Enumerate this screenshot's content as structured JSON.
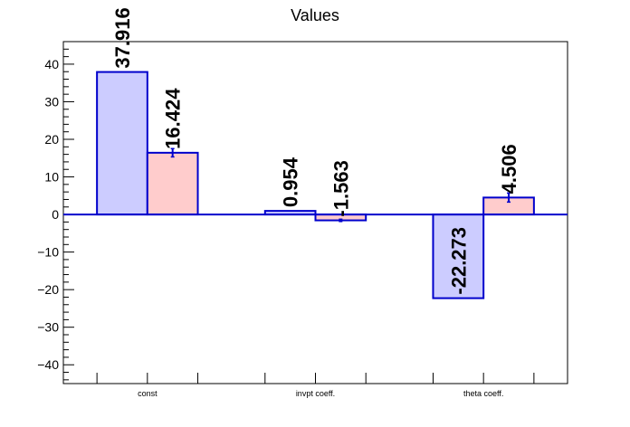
{
  "chart_data": {
    "type": "bar",
    "title": "Values",
    "xlabel": "",
    "ylabel": "",
    "ylim": [
      -45,
      46
    ],
    "yticks": [
      -40,
      -30,
      -20,
      -10,
      0,
      10,
      20,
      30,
      40
    ],
    "categories": [
      "const",
      "invpt coeff.",
      "theta coeff."
    ],
    "series": [
      {
        "values": [
          37.916,
          0.954,
          -22.273
        ],
        "labels": [
          "37.916",
          "0.954",
          "-22.273"
        ],
        "errors": [
          0,
          0,
          0
        ],
        "fill": "#ccccff",
        "stroke": "#0000cc"
      },
      {
        "values": [
          16.424,
          -1.563,
          4.506
        ],
        "labels": [
          "16.424",
          "-1.563",
          "4.506"
        ],
        "errors": [
          1.1,
          0.3,
          1.2
        ],
        "fill": "#ffcccc",
        "stroke": "#0000cc"
      }
    ],
    "grid": false,
    "legend": "none"
  }
}
